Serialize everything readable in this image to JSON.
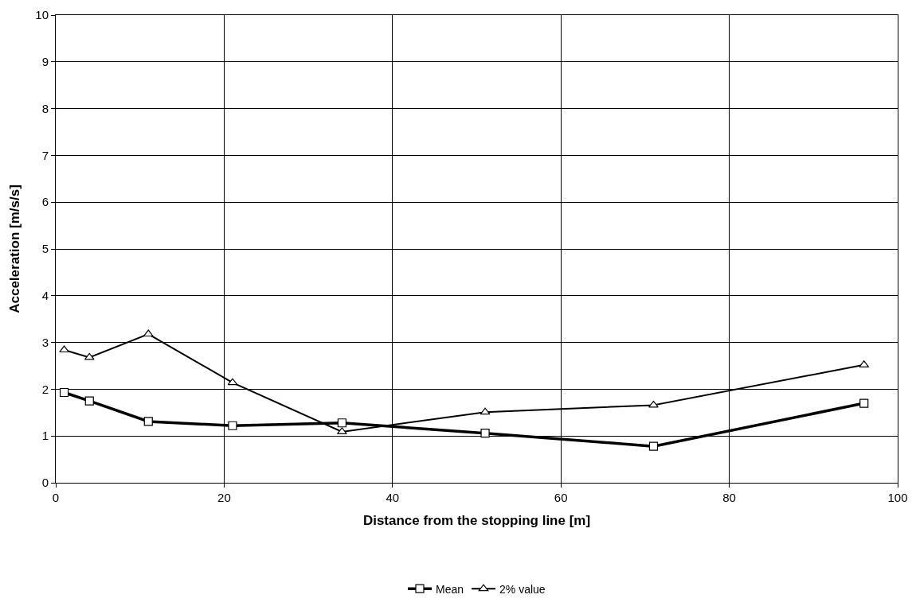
{
  "chart_data": {
    "type": "line",
    "xlabel": "Distance from the stopping line [m]",
    "ylabel": "Acceleration [m/s/s]",
    "x": [
      1,
      4,
      11,
      21,
      34,
      51,
      71,
      96
    ],
    "series": [
      {
        "name": "Mean",
        "color": "#000000",
        "marker": "square",
        "values": [
          1.93,
          1.75,
          1.31,
          1.22,
          1.28,
          1.06,
          0.78,
          1.7
        ]
      },
      {
        "name": "2% value",
        "color": "#000000",
        "marker": "triangle",
        "values": [
          2.84,
          2.68,
          3.18,
          2.14,
          1.09,
          1.51,
          1.66,
          2.52
        ]
      }
    ],
    "xlim": [
      0,
      100
    ],
    "xticks": [
      0,
      20,
      40,
      60,
      80,
      100
    ],
    "ylim": [
      0,
      10
    ],
    "yticks": [
      0,
      1,
      2,
      3,
      4,
      5,
      6,
      7,
      8,
      9,
      10
    ],
    "grid": true,
    "legend": "bottom",
    "line_style": "solid"
  }
}
